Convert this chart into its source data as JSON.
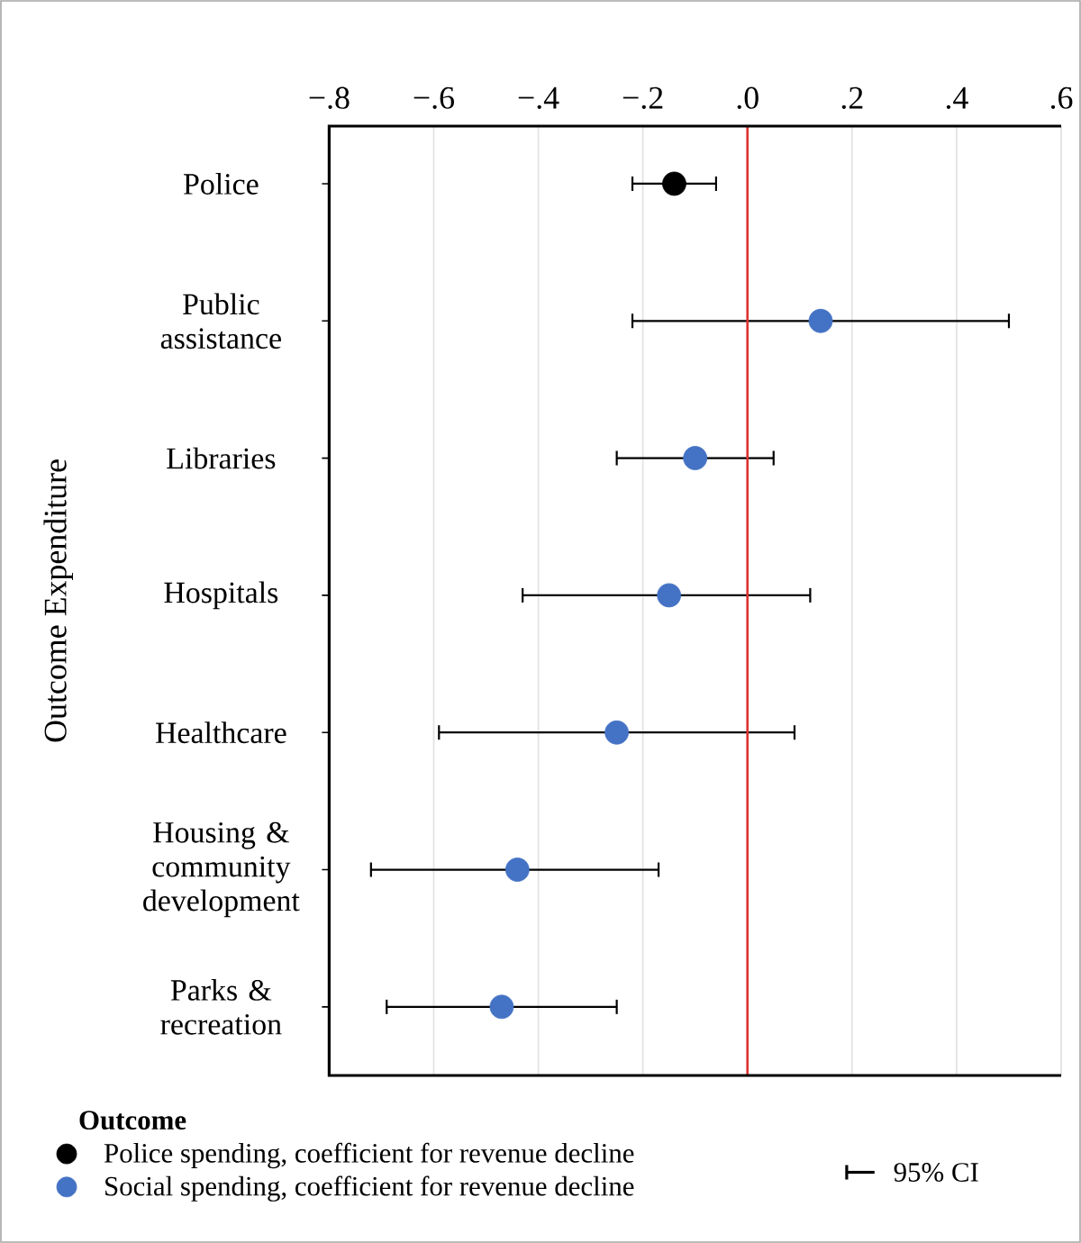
{
  "chart_data": {
    "type": "scatter",
    "orientation": "horizontal",
    "ylabel": "Outcome Expenditure",
    "legend_title": "Outcome",
    "categories": [
      "Police",
      "Public assistance",
      "Libraries",
      "Hospitals",
      "Healthcare",
      "Housing & community development",
      "Parks & recreation"
    ],
    "series": [
      {
        "name": "Police spending, coefficient for revenue decline",
        "color": "#000000",
        "values": [
          -0.14,
          null,
          null,
          null,
          null,
          null,
          null
        ],
        "errors": [
          [
            -0.22,
            -0.06
          ],
          null,
          null,
          null,
          null,
          null,
          null
        ]
      },
      {
        "name": "Social spending, coefficient for revenue decline",
        "color": "#4472c4",
        "values": [
          null,
          0.14,
          -0.1,
          -0.15,
          -0.25,
          -0.44,
          -0.47
        ],
        "errors": [
          null,
          [
            -0.22,
            0.5
          ],
          [
            -0.25,
            0.05
          ],
          [
            -0.43,
            0.12
          ],
          [
            -0.59,
            0.09
          ],
          [
            -0.72,
            -0.17
          ],
          [
            -0.69,
            -0.25
          ]
        ]
      }
    ],
    "xlim": [
      -0.8,
      0.6
    ],
    "xticks": [
      {
        "value": -0.8,
        "label": "−.8"
      },
      {
        "value": -0.6,
        "label": "−.6"
      },
      {
        "value": -0.4,
        "label": "−.4"
      },
      {
        "value": -0.2,
        "label": "−.2"
      },
      {
        "value": 0,
        "label": ".0"
      },
      {
        "value": 0.2,
        "label": ".2"
      },
      {
        "value": 0.4,
        "label": ".4"
      },
      {
        "value": 0.6,
        "label": ".6"
      }
    ],
    "ref_lines": [
      {
        "axis": "x",
        "value": 0,
        "color": "#e03030"
      }
    ],
    "grid": "x",
    "marker": "circle",
    "legend": "bottom left",
    "annotations": [
      "95% CI"
    ]
  }
}
